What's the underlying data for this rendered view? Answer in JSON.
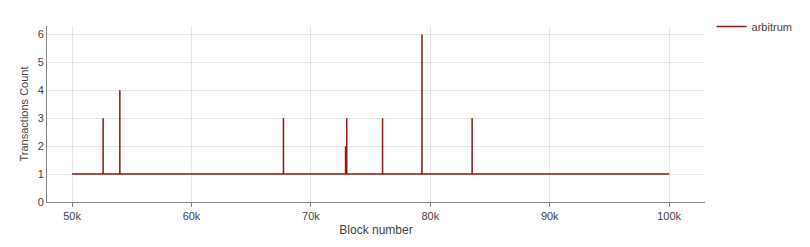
{
  "chart_data": {
    "type": "line",
    "x_label": "Block number",
    "y_label": "Transactions Count",
    "x": [
      50000,
      52599,
      52600,
      52601,
      53999,
      54000,
      54001,
      67699,
      67700,
      67701,
      72899,
      72900,
      72901,
      72999,
      73000,
      73001,
      75999,
      76000,
      76001,
      79299,
      79300,
      79301,
      83499,
      83500,
      83501,
      100000
    ],
    "series": [
      {
        "name": "arbitrum",
        "color": "#8b1a1a",
        "line_style": "solid",
        "values": [
          1,
          1,
          3,
          1,
          1,
          4,
          1,
          1,
          3,
          1,
          1,
          2,
          1,
          1,
          3,
          1,
          1,
          3,
          1,
          1,
          6,
          1,
          1,
          3,
          1,
          1
        ]
      }
    ],
    "xlim": [
      47900,
      103000
    ],
    "xticks": [
      {
        "value": 50000,
        "label": "50k"
      },
      {
        "value": 60000,
        "label": "60k"
      },
      {
        "value": 70000,
        "label": "70k"
      },
      {
        "value": 80000,
        "label": "80k"
      },
      {
        "value": 90000,
        "label": "90k"
      },
      {
        "value": 100000,
        "label": "100k"
      }
    ],
    "ylim": [
      0,
      6.3
    ],
    "yticks": [
      0,
      1,
      2,
      3,
      4,
      5,
      6
    ],
    "grid": true,
    "legend": "top right"
  }
}
